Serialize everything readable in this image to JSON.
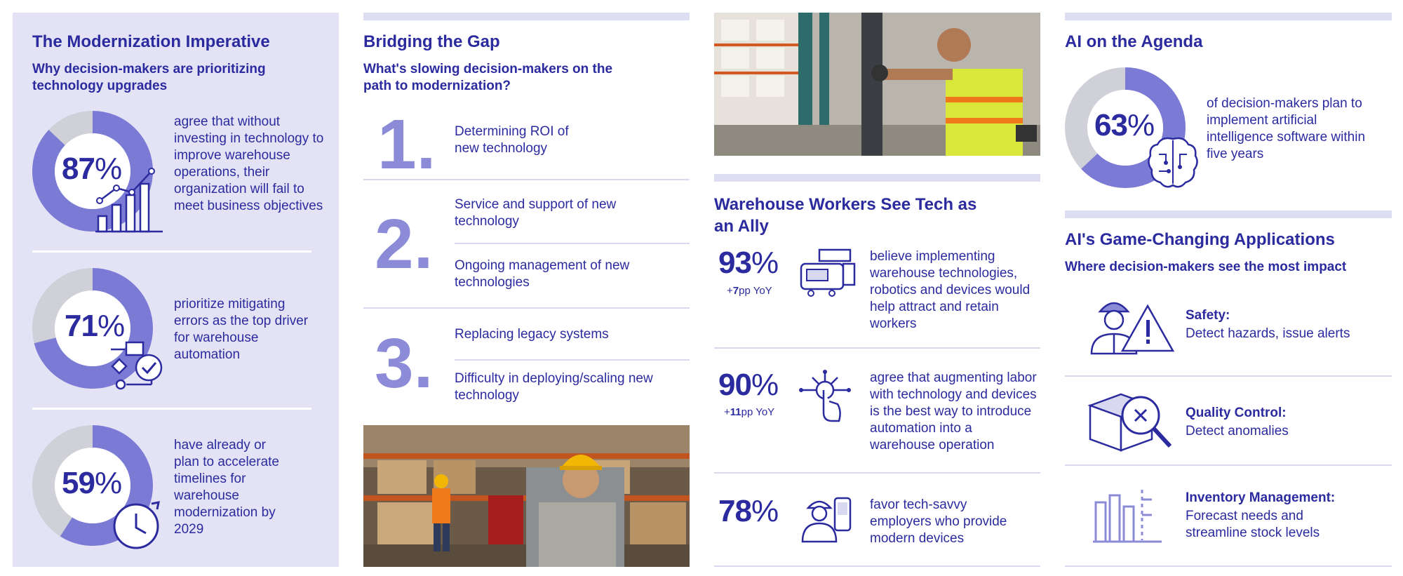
{
  "modernization": {
    "title": "The Modernization Imperative",
    "subtitle": "Why decision-makers are prioritizing technology upgrades",
    "stats": [
      {
        "pct_num": "87",
        "pct_sym": "%",
        "value": 87,
        "text": "agree that without investing in technology to improve warehouse operations, their organization will fail to meet business objectives",
        "icon": "bar-chart-growth-icon"
      },
      {
        "pct_num": "71",
        "pct_sym": "%",
        "value": 71,
        "text": "prioritize mitigating errors as the top driver for warehouse automation",
        "icon": "workflow-check-icon"
      },
      {
        "pct_num": "59",
        "pct_sym": "%",
        "value": 59,
        "text": "have already or plan to accelerate timelines for warehouse modernization by 2029",
        "icon": "clock-icon"
      }
    ]
  },
  "gap": {
    "title": "Bridging the Gap",
    "subtitle": "What's slowing decision-makers on the path to modernization?",
    "items": [
      {
        "num": "1.",
        "lines": [
          "Determining ROI of new technology"
        ]
      },
      {
        "num": "2.",
        "lines": [
          "Service and support of new technology",
          "Ongoing management of new technologies"
        ]
      },
      {
        "num": "3.",
        "lines": [
          "Replacing legacy systems",
          "Difficulty in deploying/scaling new technology"
        ]
      }
    ]
  },
  "workers": {
    "title": "Warehouse Workers See Tech as an Ally",
    "stats": [
      {
        "pct_num": "93",
        "pct_sym": "%",
        "yoy_pre": "+",
        "yoy_num": "7",
        "yoy_post": "pp YoY",
        "text": "believe implementing warehouse technologies, robotics and devices would help attract and retain workers",
        "icon": "mobile-computer-icon"
      },
      {
        "pct_num": "90",
        "pct_sym": "%",
        "yoy_pre": "+",
        "yoy_num": "11",
        "yoy_post": "pp YoY",
        "text": "agree that augmenting labor with technology and devices is the best way to introduce automation into a warehouse operation",
        "icon": "touch-network-icon"
      },
      {
        "pct_num": "78",
        "pct_sym": "%",
        "yoy_pre": "",
        "yoy_num": "",
        "yoy_post": "",
        "text": "favor tech-savvy employers who provide modern devices",
        "icon": "worker-device-icon"
      }
    ]
  },
  "ai": {
    "title": "AI on the Agenda",
    "pct_num": "63",
    "pct_sym": "%",
    "value": 63,
    "text": "of decision-makers plan to implement artificial intelligence software within five years",
    "icon": "brain-circuit-icon",
    "apps_title": "AI's Game-Changing Applications",
    "apps_subtitle": "Where decision-makers see the most impact",
    "apps": [
      {
        "label": "Safety:",
        "desc": "Detect hazards, issue alerts",
        "icon": "worker-warning-icon"
      },
      {
        "label": "Quality Control:",
        "desc": "Detect anomalies",
        "icon": "box-magnifier-icon"
      },
      {
        "label": "Inventory Management:",
        "desc": "Forecast needs and streamline stock levels",
        "icon": "inventory-chart-icon"
      }
    ]
  },
  "colors": {
    "navy": "#2b2b9f",
    "violet": "#7b7bd6",
    "lilac": "#8b8bd8",
    "ring_gray": "#d0d0d8",
    "panel": "#e3e3f5"
  }
}
